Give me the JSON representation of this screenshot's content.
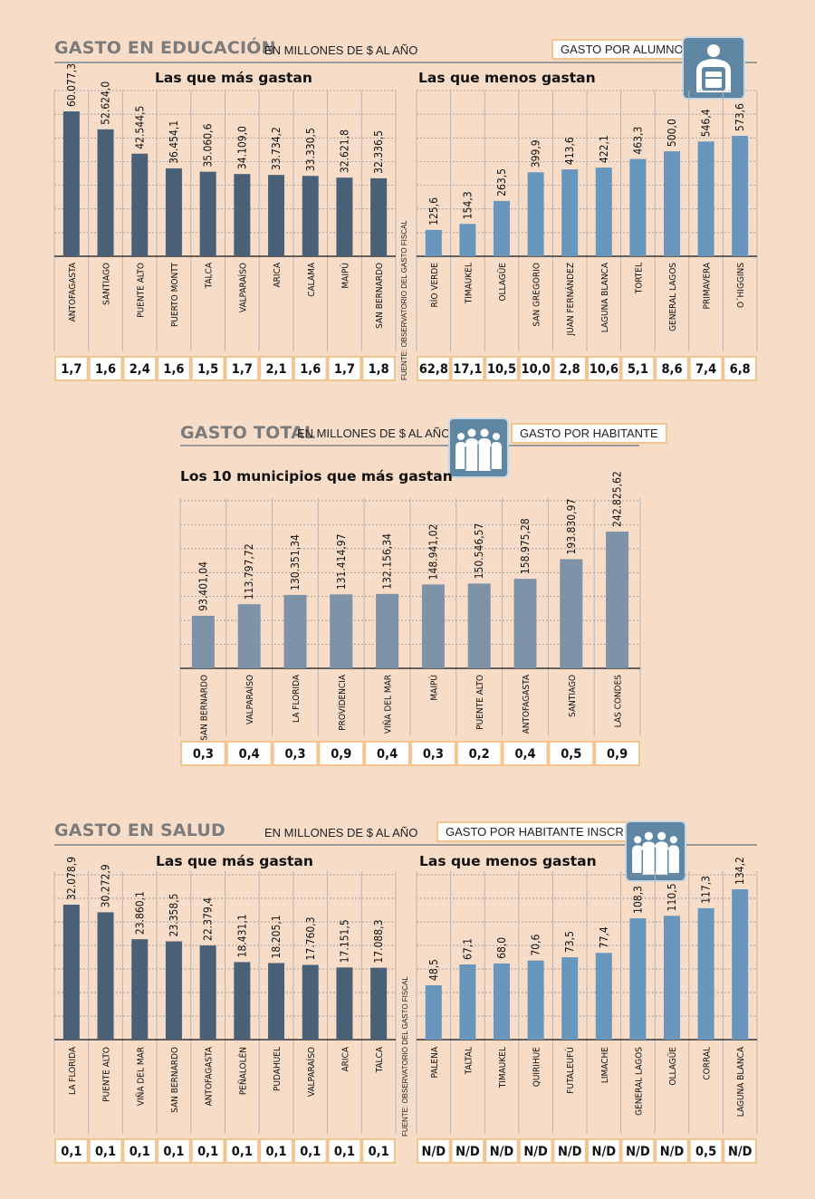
{
  "educacion": {
    "title": "GASTO EN EDUCACIÓN",
    "unit": "EN MILLONES DE $ AL AÑO",
    "badge": "GASTO POR ALUMNO",
    "left_subtitle": "Las que más gastan",
    "right_subtitle": "Las que menos gastan",
    "source": "FUENTE: OBSERVATORIO DEL GASTO FISCAL"
  },
  "total": {
    "title": "GASTO TOTAL",
    "unit": "EN MILLONES DE $ AL AÑO",
    "badge": "GASTO POR HABITANTE",
    "subtitle": "Los 10 municipios que más gastan"
  },
  "salud": {
    "title": "GASTO EN SALUD",
    "unit": "EN MILLONES DE $ AL AÑO",
    "badge": "GASTO POR HABITANTE INSCRITO",
    "left_subtitle": "Las que más gastan",
    "right_subtitle": "Las que menos gastan",
    "source": "FUENTE: OBSERVATORIO DEL GASTO FISCAL"
  },
  "icons": {
    "educacion": "student-backpack-icon",
    "total": "people-group-icon",
    "salud": "people-group-icon"
  },
  "colors": {
    "background": "#f7dcc8",
    "dark_bar": "#4a6077",
    "light_bar": "#6896bd",
    "mid_bar": "#7e93a8",
    "cell_border": "#f2c48e"
  },
  "chart_data": [
    {
      "type": "bar",
      "title": "Las que más gastan",
      "categories": [
        "ANTOFAGASTA",
        "SANTIAGO",
        "PUENTE ALTO",
        "PUERTO MONTT",
        "TALCA",
        "VALPARAÍSO",
        "ARICA",
        "CALAMA",
        "MAIPÚ",
        "SAN BERNARDO"
      ],
      "values": [
        60077.3,
        52624.0,
        42544.5,
        36454.1,
        35060.6,
        34109.0,
        33734.2,
        33330.5,
        32621.8,
        32336.5
      ],
      "labels": [
        "60.077,3",
        "52.624,0",
        "42.544,5",
        "36.454,1",
        "35.060,6",
        "34.109,0",
        "33.734,2",
        "33.330,5",
        "32.621,8",
        "32.336,5"
      ],
      "per_unit": [
        "1,7",
        "1,6",
        "2,4",
        "1,6",
        "1,5",
        "1,7",
        "2,1",
        "1,6",
        "1,7",
        "1,8"
      ],
      "ylim": [
        0,
        60000
      ]
    },
    {
      "type": "bar",
      "title": "Las que menos gastan",
      "categories": [
        "RÍO VERDE",
        "TIMAUKEL",
        "OLLAGÜE",
        "SAN GREGORIO",
        "JUAN FERNÁNDEZ",
        "LAGUNA BLANCA",
        "TORTEL",
        "GENERAL LAGOS",
        "PRIMAVERA",
        "O´HIGGINS"
      ],
      "values": [
        125.6,
        154.3,
        263.5,
        399.9,
        413.6,
        422.1,
        463.3,
        500.0,
        546.4,
        573.6
      ],
      "labels": [
        "125,6",
        "154,3",
        "263,5",
        "399,9",
        "413,6",
        "422,1",
        "463,3",
        "500,0",
        "546,4",
        "573,6"
      ],
      "per_unit": [
        "62,8",
        "17,1",
        "10,5",
        "10,0",
        "2,8",
        "10,6",
        "5,1",
        "8,6",
        "7,4",
        "6,8"
      ],
      "ylim": [
        0,
        600
      ]
    },
    {
      "type": "bar",
      "title": "Los 10 municipios que más gastan",
      "categories": [
        "SAN BERNARDO",
        "VALPARAÍSO",
        "LA FLORIDA",
        "PROVIDENCIA",
        "VIÑA DEL MAR",
        "MAIPÚ",
        "PUENTE ALTO",
        "ANTOFAGASTA",
        "SANTIAGO",
        "LAS CONDES"
      ],
      "values": [
        93401.04,
        113797.72,
        130351.34,
        131414.97,
        132156.34,
        148941.02,
        150546.57,
        158975.28,
        193830.97,
        242825.62
      ],
      "labels": [
        "93.401,04",
        "113.797,72",
        "130.351,34",
        "131.414,97",
        "132.156,34",
        "148.941,02",
        "150.546,57",
        "158.975,28",
        "193.830,97",
        "242.825,62"
      ],
      "per_unit": [
        "0,3",
        "0,4",
        "0,3",
        "0,9",
        "0,4",
        "0,3",
        "0,2",
        "0,4",
        "0,5",
        "0,9"
      ],
      "ylim": [
        0,
        250000
      ]
    },
    {
      "type": "bar",
      "title": "Las que más gastan",
      "categories": [
        "LA FLORIDA",
        "PUENTE ALTO",
        "VIÑA DEL MAR",
        "SAN BERNARDO",
        "ANTOFAGASTA",
        "PEÑALOLÉN",
        "PUDAHUEL",
        "VALPARAÍSO",
        "ARICA",
        "TALCA"
      ],
      "values": [
        32078.9,
        30272.9,
        23860.1,
        23358.5,
        22379.4,
        18431.1,
        18205.1,
        17760.3,
        17151.5,
        17088.3
      ],
      "labels": [
        "32.078,9",
        "30.272,9",
        "23.860,1",
        "23.358,5",
        "22.379,4",
        "18.431,1",
        "18.205,1",
        "17.760,3",
        "17.151,5",
        "17.088,3"
      ],
      "per_unit": [
        "0,1",
        "0,1",
        "0,1",
        "0,1",
        "0,1",
        "0,1",
        "0,1",
        "0,1",
        "0,1",
        "0,1"
      ],
      "ylim": [
        0,
        35000
      ]
    },
    {
      "type": "bar",
      "title": "Las que menos gastan",
      "categories": [
        "PALENA",
        "TALTAL",
        "TIMAUKEL",
        "QUIRIHUE",
        "FUTALEUFÚ",
        "LIMACHE",
        "GENERAL LAGOS",
        "OLLAGÜE",
        "CORRAL",
        "LAGUNA BLANCA"
      ],
      "values": [
        48.5,
        67.1,
        68.0,
        70.6,
        73.5,
        77.4,
        108.3,
        110.5,
        117.3,
        134.2
      ],
      "labels": [
        "48,5",
        "67,1",
        "68,0",
        "70,6",
        "73,5",
        "77,4",
        "108,3",
        "110,5",
        "117,3",
        "134,2"
      ],
      "per_unit": [
        "N/D",
        "N/D",
        "N/D",
        "N/D",
        "N/D",
        "N/D",
        "N/D",
        "N/D",
        "0,5",
        "N/D"
      ],
      "ylim": [
        0,
        140
      ]
    }
  ]
}
